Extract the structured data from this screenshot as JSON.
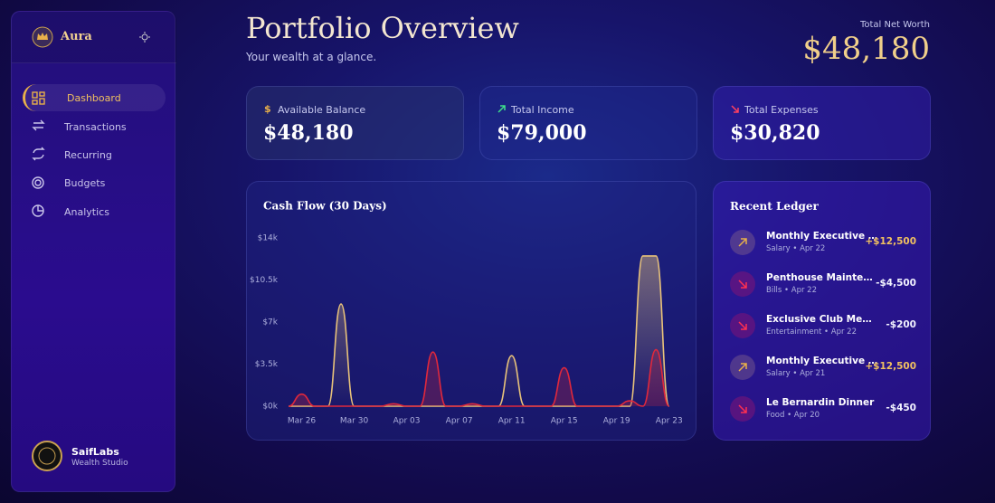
{
  "sidebar": {
    "brand": "Aura",
    "nav": [
      "Dashboard",
      "Transactions",
      "Recurring",
      "Budgets",
      "Analytics"
    ],
    "user": {
      "name": "SaifLabs",
      "role": "Wealth Studio"
    }
  },
  "header": {
    "title": "Portfolio Overview",
    "subtitle": "Your wealth at a glance.",
    "net_worth_label": "Total Net Worth",
    "net_worth": "$48,180"
  },
  "stats": [
    {
      "label": "Available Balance",
      "value": "$48,180"
    },
    {
      "label": "Total Income",
      "value": "$79,000"
    },
    {
      "label": "Total Expenses",
      "value": "$30,820"
    }
  ],
  "chart_data": {
    "type": "line",
    "title": "Cash Flow (30 Days)",
    "categories": [
      null,
      "Mar 26",
      null,
      null,
      null,
      "Mar 30",
      null,
      null,
      null,
      "Apr 03",
      null,
      null,
      null,
      "Apr 07",
      null,
      null,
      null,
      "Apr 11",
      null,
      null,
      null,
      "Apr 15",
      null,
      null,
      null,
      "Apr 19",
      null,
      null,
      null,
      "Apr 23"
    ],
    "series": [
      {
        "name": "Income",
        "color": "#e8c27a",
        "values": [
          0,
          0,
          0,
          0,
          8500,
          0,
          0,
          0,
          0,
          0,
          0,
          0,
          0,
          0,
          0,
          0,
          0,
          4200,
          0,
          0,
          0,
          0,
          0,
          0,
          0,
          0,
          0,
          12500,
          12500,
          0
        ]
      },
      {
        "name": "Expenses",
        "color": "#e0283c",
        "values": [
          0,
          1000,
          0,
          0,
          0,
          0,
          0,
          0,
          200,
          0,
          0,
          4500,
          0,
          0,
          200,
          0,
          0,
          0,
          0,
          0,
          0,
          3200,
          0,
          0,
          0,
          0,
          450,
          0,
          4700,
          0
        ]
      }
    ],
    "ylim": [
      0,
      14000
    ],
    "yticks": [
      {
        "value": 0,
        "label": "$0k"
      },
      {
        "value": 3500,
        "label": "$3.5k"
      },
      {
        "value": 7000,
        "label": "$7k"
      },
      {
        "value": 10500,
        "label": "$10.5k"
      },
      {
        "value": 14000,
        "label": "$14k"
      }
    ]
  },
  "ledger": {
    "title": "Recent Ledger",
    "items": [
      {
        "name": "Monthly Executive Salary",
        "meta": "Salary • Apr 22",
        "amount": "+$12,500"
      },
      {
        "name": "Penthouse Maintenance",
        "meta": "Bills • Apr 22",
        "amount": "-$4,500"
      },
      {
        "name": "Exclusive Club Membership",
        "meta": "Entertainment • Apr 22",
        "amount": "-$200"
      },
      {
        "name": "Monthly Executive Salary",
        "meta": "Salary • Apr 21",
        "amount": "+$12,500"
      },
      {
        "name": "Le Bernardin Dinner",
        "meta": "Food • Apr 20",
        "amount": "-$450"
      }
    ]
  }
}
